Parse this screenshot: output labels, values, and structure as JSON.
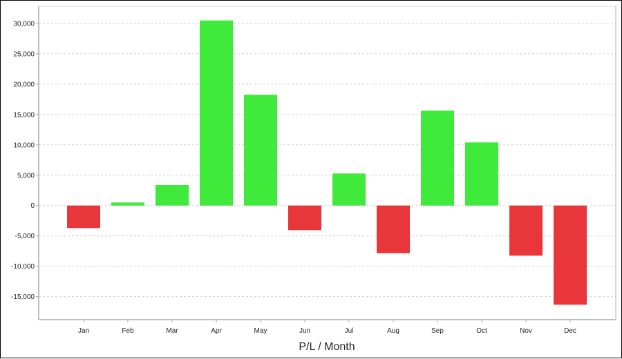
{
  "chart_data": {
    "type": "bar",
    "title": "",
    "xlabel": "P/L / Month",
    "ylabel": "",
    "categories": [
      "Jan",
      "Feb",
      "Mar",
      "Apr",
      "May",
      "Jun",
      "Jul",
      "Aug",
      "Sep",
      "Oct",
      "Nov",
      "Dec"
    ],
    "values": [
      -3710,
      500,
      3380,
      30490,
      18250,
      -4050,
      5280,
      -7850,
      15630,
      10400,
      -8260,
      -16340
    ],
    "ylim": [
      -18800,
      32840
    ],
    "yticks": [
      30000,
      25000,
      20000,
      15000,
      10000,
      5000,
      0,
      -5000,
      -10000,
      -15000
    ],
    "ytick_labels": [
      "30,000",
      "25,000",
      "20,000",
      "15,000",
      "10,000",
      "5,000",
      "0",
      "-5,000",
      "-10,000",
      "-15,000"
    ],
    "grid": true,
    "colors": {
      "positive": "#3fea3b",
      "negative": "#e8363a",
      "grid": "#d0d0d0",
      "axis": "#aaaaaa"
    }
  }
}
